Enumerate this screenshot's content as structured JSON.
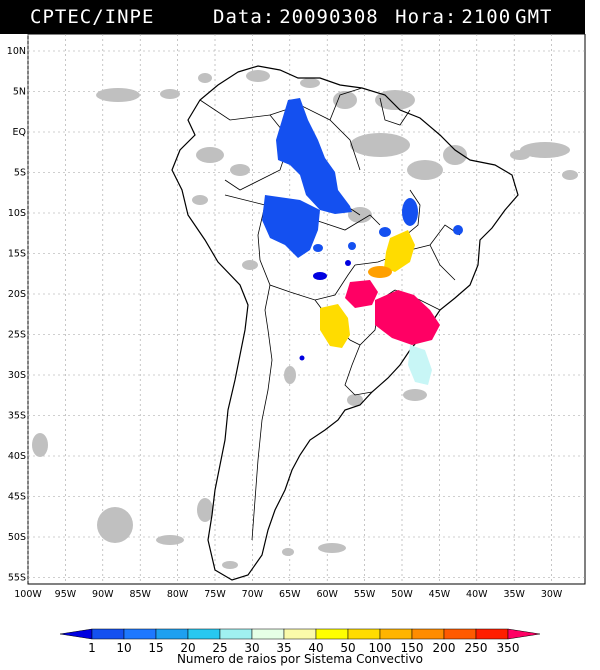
{
  "header": {
    "source": "CPTEC/INPE",
    "data_label": "Data:",
    "data_value": "20090308",
    "hora_label": "Hora:",
    "hora_value": "2100",
    "timezone": "GMT"
  },
  "axes": {
    "lat_labels": [
      "10N",
      "5N",
      "EQ",
      "5S",
      "10S",
      "15S",
      "20S",
      "25S",
      "30S",
      "35S",
      "40S",
      "45S",
      "50S",
      "55S"
    ],
    "lon_labels": [
      "100W",
      "95W",
      "90W",
      "85W",
      "80W",
      "75W",
      "70W",
      "65W",
      "60W",
      "55W",
      "50W",
      "45W",
      "40W",
      "35W",
      "30W"
    ]
  },
  "colorbar": {
    "ticks": [
      "1",
      "10",
      "15",
      "20",
      "25",
      "30",
      "35",
      "40",
      "50",
      "100",
      "150",
      "200",
      "250",
      "350"
    ],
    "colors": [
      "#0000e0",
      "#1450f0",
      "#1e78ff",
      "#1ea0f0",
      "#28c8f0",
      "#a0f0f0",
      "#e6ffe6",
      "#fafaaa",
      "#ffff00",
      "#ffdc00",
      "#ffb400",
      "#ff8c00",
      "#ff5a00",
      "#ff1e00",
      "#ff0064"
    ],
    "caption": "Numero de raios por Sistema Convectivo"
  },
  "colors": {
    "land_outline": "#000000",
    "cloud": "#c0c0c0",
    "grid": "#a0a0a0"
  }
}
